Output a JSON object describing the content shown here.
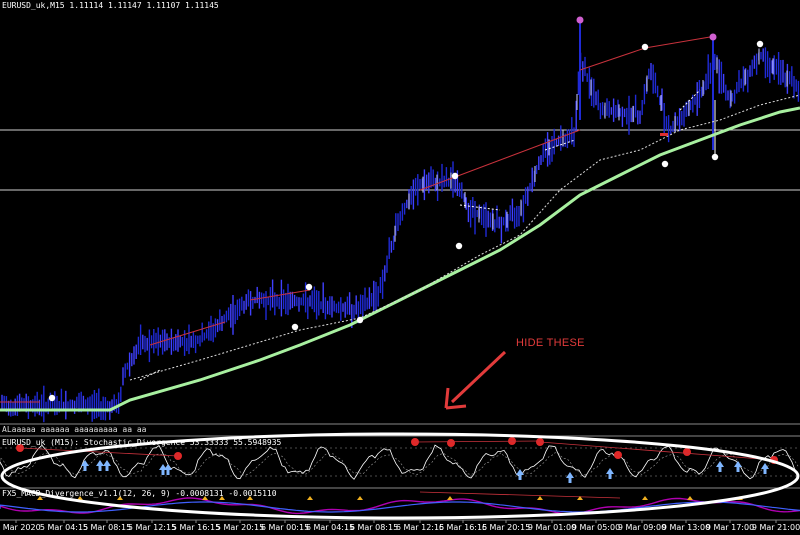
{
  "window": {
    "symbol_line": "EURUSD_uk,M15   1.11114 1.11147 1.11107 1.11145"
  },
  "panels": {
    "garbled_label": "ALaaaaa aaaaaa aaaaaaaaa aa aa",
    "stochastic_label": "EURUSD_uk (M15):  Stochastic_Divergence          53.33333 55.5948935",
    "macd_label": "FX5_MACD_Divergence_v1.1(12, 26, 9) -0.0008131 -0.0015110"
  },
  "annotation": {
    "text": "HIDE THESE",
    "color": "#e23b3b"
  },
  "time_axis": [
    "Mar 2020",
    "5 Mar 04:15",
    "5 Mar 08:15",
    "5 Mar 12:15",
    "5 Mar 16:15",
    "5 Mar 20:15",
    "6 Mar 00:15",
    "6 Mar 04:15",
    "6 Mar 08:15",
    "6 Mar 12:15",
    "6 Mar 16:15",
    "6 Mar 20:15",
    "9 Mar 01:00",
    "9 Mar 05:00",
    "9 Mar 09:00",
    "9 Mar 13:00",
    "9 Mar 17:00",
    "9 Mar 21:00"
  ],
  "colors": {
    "background": "#000000",
    "candles": "#1f2ad6",
    "moving_average": "#a8f0a0",
    "divergence_line": "#c8323c",
    "stochastic_line": "#ffffff",
    "macd_line": "#b000b0"
  }
}
